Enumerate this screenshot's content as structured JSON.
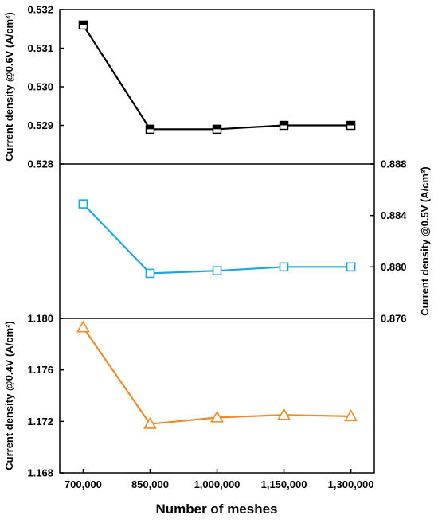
{
  "chart_data": {
    "type": "line",
    "x": {
      "label": "Number of meshes",
      "values": [
        700000,
        850000,
        1000000,
        1150000,
        1300000
      ],
      "tick_labels": [
        "700,000",
        "850,000",
        "1,000,000",
        "1,150,000",
        "1,300,000"
      ]
    },
    "panels": [
      {
        "ylabel": "Current density @0.6V (A/cm²)",
        "y_axis_side": "left",
        "ylim": [
          0.528,
          0.532
        ],
        "y_ticks": [
          "0.528",
          "0.529",
          "0.530",
          "0.531",
          "0.532"
        ],
        "marker": "half-filled-square",
        "color": "#000000",
        "values": [
          0.5316,
          0.5289,
          0.5289,
          0.529,
          0.529
        ]
      },
      {
        "ylabel": "Current density @0.5V (A/cm²)",
        "y_axis_side": "right",
        "ylim": [
          0.876,
          0.888
        ],
        "y_ticks": [
          "0.876",
          "0.880",
          "0.884",
          "0.888"
        ],
        "marker": "open-square",
        "color": "#1aa7e6",
        "values": [
          0.8849,
          0.8795,
          0.8797,
          0.88,
          0.88
        ]
      },
      {
        "ylabel": "Current density @0.4V (A/cm²)",
        "y_axis_side": "left",
        "ylim": [
          1.168,
          1.18
        ],
        "y_ticks": [
          "1.168",
          "1.172",
          "1.176",
          "1.180"
        ],
        "marker": "open-triangle",
        "color": "#f08a24",
        "values": [
          1.1793,
          1.1718,
          1.1723,
          1.1725,
          1.1724
        ]
      }
    ],
    "grid": false,
    "legend": "none"
  }
}
